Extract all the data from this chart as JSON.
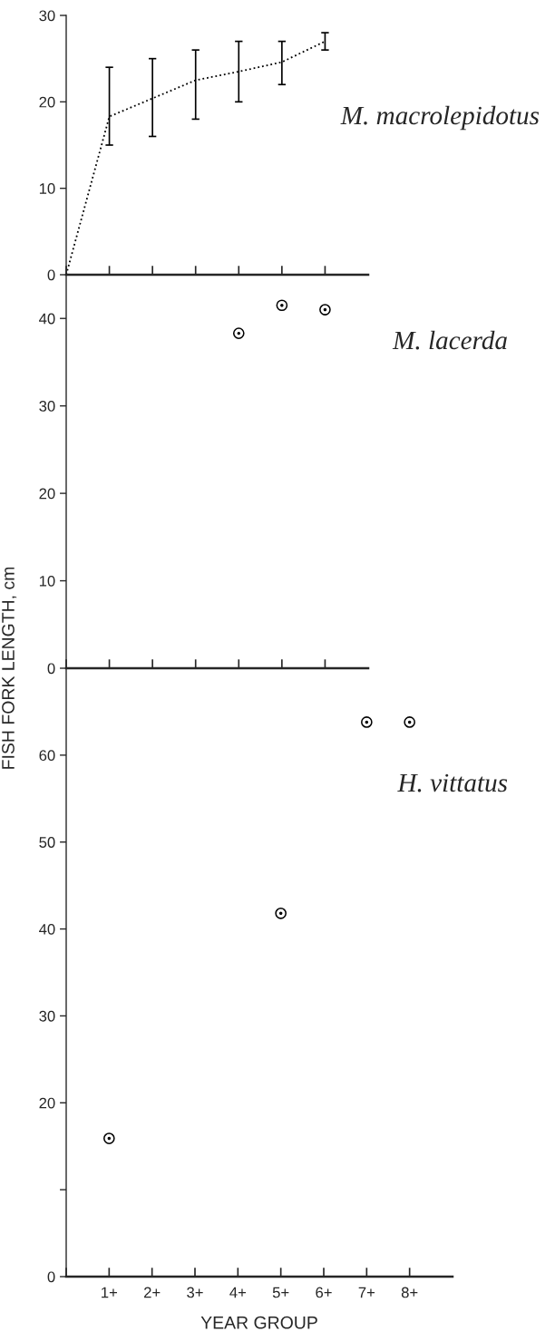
{
  "chart_data": [
    {
      "type": "line",
      "categories": [
        null,
        null,
        null,
        null,
        null,
        null,
        null
      ],
      "series": [
        {
          "color": "#000000",
          "values": [
            0,
            18.3,
            20.4,
            22.5,
            23.5,
            24.6,
            27.0
          ],
          "errors": [
            null,
            [
              15,
              24
            ],
            [
              16,
              25
            ],
            [
              18,
              26
            ],
            [
              20,
              27
            ],
            [
              22,
              27
            ],
            [
              26,
              28
            ]
          ]
        }
      ],
      "marker": "none",
      "line_style": "dotted",
      "ylim": [
        0,
        30
      ],
      "yticks": [
        0,
        10,
        20,
        30
      ],
      "grid": false,
      "annotations": [
        "M. macrolepidotus"
      ]
    },
    {
      "type": "scatter",
      "categories": [
        null,
        null,
        null,
        null,
        null,
        null,
        null
      ],
      "series": [
        {
          "color": "#000000",
          "values": [
            null,
            null,
            null,
            null,
            38.3,
            41.5,
            41.0
          ]
        }
      ],
      "marker": "circle",
      "ylim": [
        0,
        45
      ],
      "yticks": [
        0,
        10,
        20,
        30,
        40
      ],
      "grid": false,
      "ylabel": "FISH FORK LENGTH, cm",
      "annotations": [
        "M. lacerda"
      ]
    },
    {
      "type": "scatter",
      "categories": [
        null,
        "1+",
        "2+",
        "3+",
        "4+",
        "5+",
        "6+",
        "7+",
        "8+"
      ],
      "series": [
        {
          "color": "#000000",
          "values": [
            null,
            15.9,
            null,
            null,
            null,
            41.8,
            null,
            63.8,
            63.8
          ]
        }
      ],
      "marker": "circle",
      "ylim": [
        0,
        70
      ],
      "yticks": [
        0,
        {
          "value": 10,
          "label": null
        },
        20,
        30,
        40,
        50,
        60
      ],
      "grid": false,
      "xlabel": "YEAR GROUP",
      "annotations": [
        "H. vittatus"
      ]
    }
  ]
}
